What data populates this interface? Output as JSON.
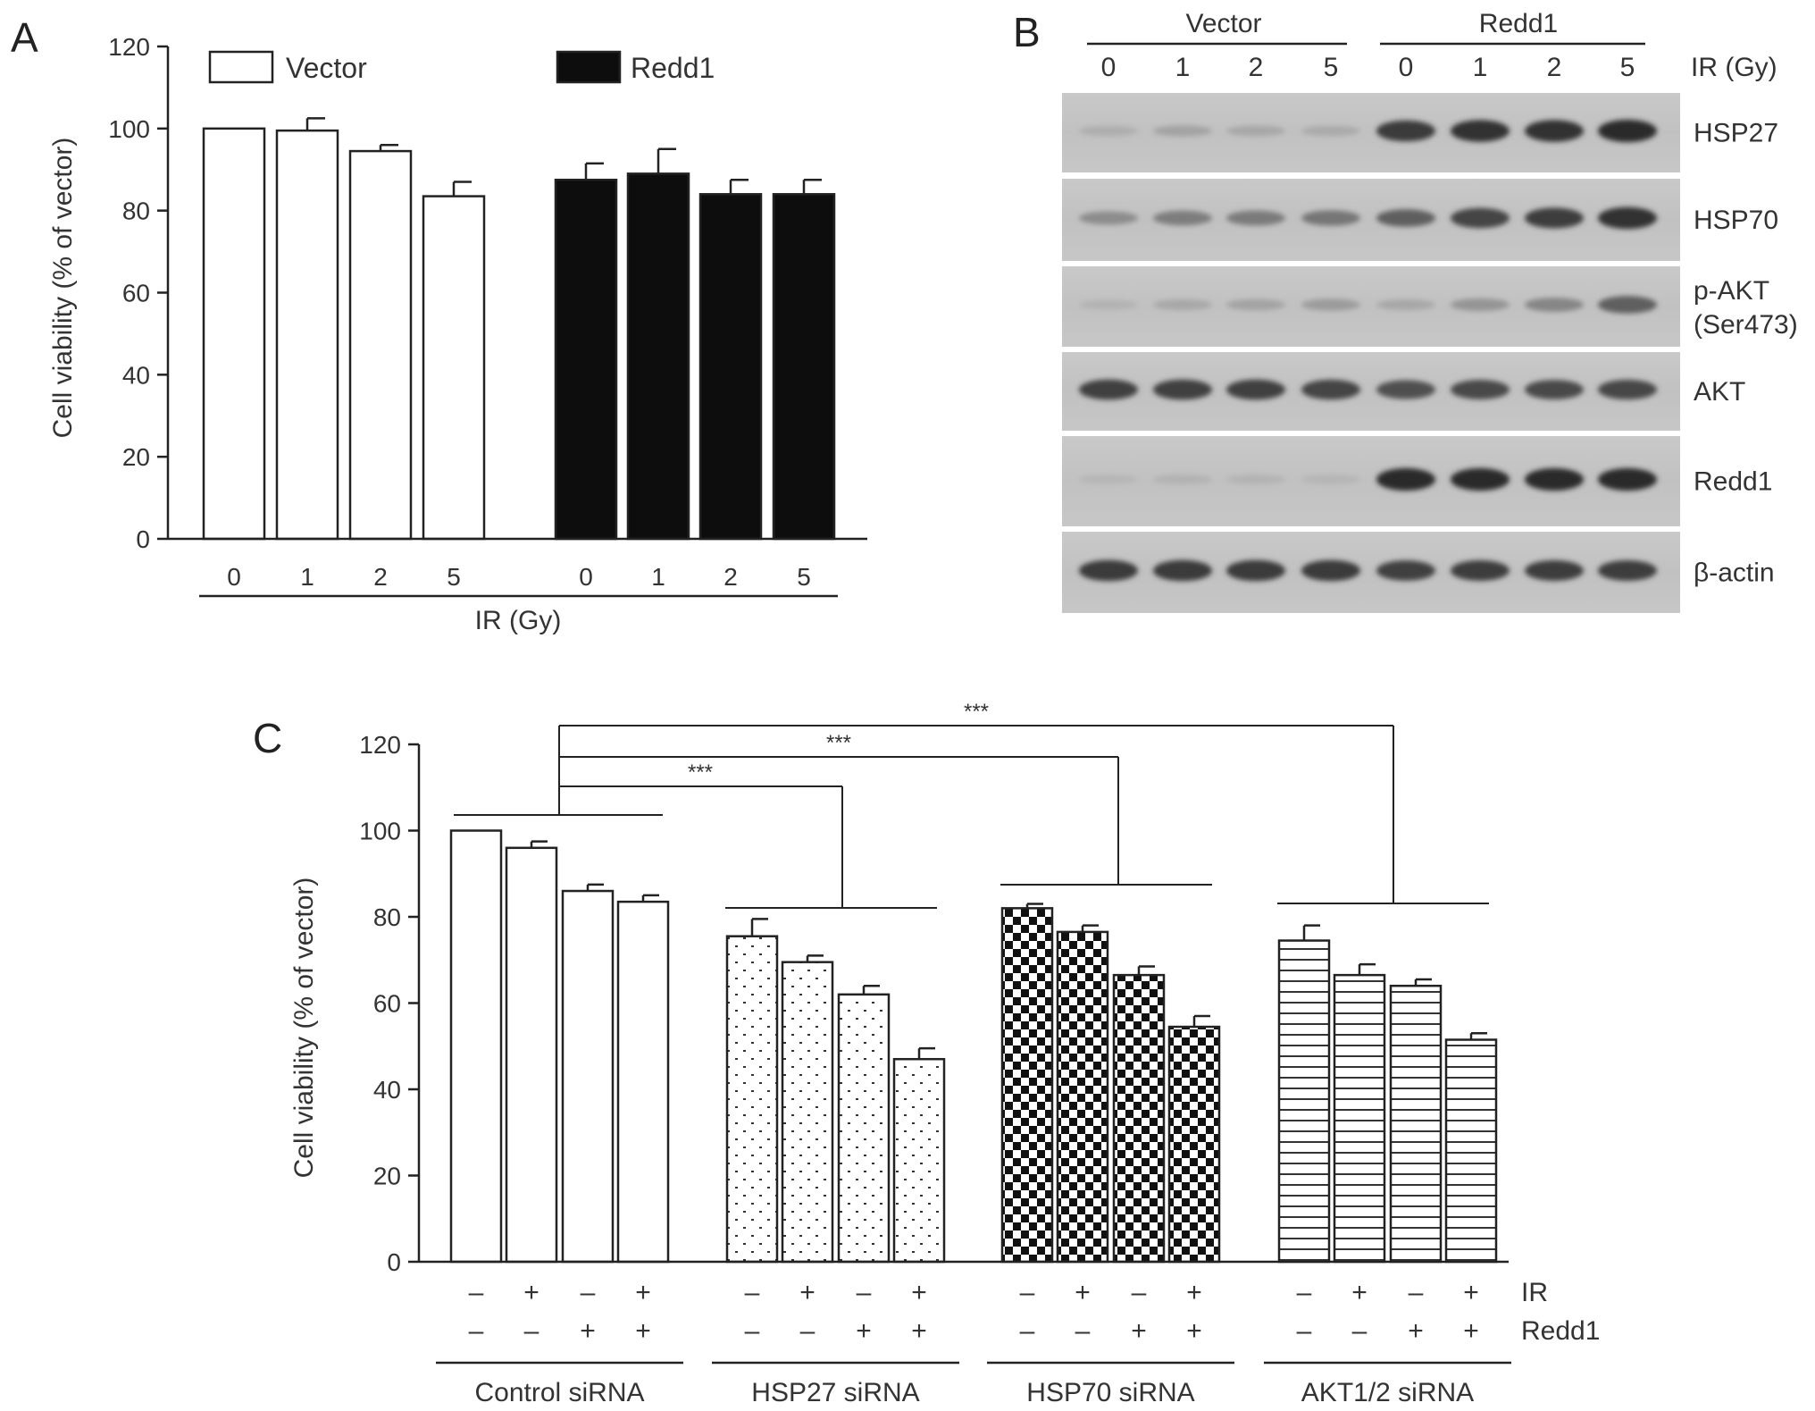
{
  "panels": {
    "a": {
      "letter": "A",
      "ylabel": "Cell viability (% of vector)",
      "xlabel": "IR (Gy)",
      "ylim": [
        0,
        120
      ],
      "yticks": [
        0,
        20,
        40,
        60,
        80,
        100,
        120
      ],
      "legend": [
        {
          "label": "Vector",
          "fill": "#ffffff"
        },
        {
          "label": "Redd1",
          "fill": "#0d0d0d"
        }
      ]
    },
    "b": {
      "letter": "B",
      "groups": [
        "Vector",
        "Redd1"
      ],
      "lanes": [
        "0",
        "1",
        "2",
        "5",
        "0",
        "1",
        "2",
        "5"
      ],
      "lane_axis_label": "IR (Gy)",
      "blots": [
        {
          "label": "HSP27",
          "intensity": [
            0.08,
            0.15,
            0.12,
            0.1,
            0.85,
            0.9,
            0.9,
            0.95
          ]
        },
        {
          "label": "HSP70",
          "intensity": [
            0.3,
            0.4,
            0.42,
            0.45,
            0.6,
            0.78,
            0.82,
            0.9
          ]
        },
        {
          "label": "p-AKT",
          "label2": "(Ser473)",
          "intensity": [
            0.05,
            0.12,
            0.15,
            0.2,
            0.12,
            0.25,
            0.35,
            0.6
          ]
        },
        {
          "label": "AKT",
          "intensity": [
            0.8,
            0.8,
            0.8,
            0.78,
            0.7,
            0.75,
            0.74,
            0.76
          ]
        },
        {
          "label": "Redd1",
          "intensity": [
            0.02,
            0.05,
            0.04,
            0.03,
            0.95,
            0.95,
            0.95,
            0.95
          ]
        },
        {
          "label": "β-actin",
          "intensity": [
            0.85,
            0.85,
            0.85,
            0.85,
            0.8,
            0.82,
            0.82,
            0.82
          ]
        }
      ]
    },
    "c": {
      "letter": "C",
      "ylabel": "Cell viability (% of vector)",
      "ylim": [
        0,
        120
      ],
      "yticks": [
        0,
        20,
        40,
        60,
        80,
        100,
        120
      ],
      "row_labels": [
        "IR",
        "Redd1"
      ],
      "significance": [
        "***",
        "***",
        "***"
      ]
    }
  },
  "chart_data": [
    {
      "type": "bar",
      "title": "",
      "xlabel": "IR (Gy)",
      "ylabel": "Cell viability (% of vector)",
      "ylim": [
        0,
        120
      ],
      "categories": [
        "0",
        "1",
        "2",
        "5"
      ],
      "series": [
        {
          "name": "Vector",
          "values": [
            100,
            99.5,
            94.5,
            83.5
          ],
          "errors": [
            0,
            3,
            1.5,
            3.5
          ],
          "color": "#ffffff"
        },
        {
          "name": "Redd1",
          "values": [
            87.5,
            89,
            84,
            84
          ],
          "errors": [
            4,
            6,
            3.5,
            3.5
          ],
          "color": "#0d0d0d"
        }
      ]
    },
    {
      "type": "bar",
      "title": "",
      "xlabel": "",
      "ylabel": "Cell viability (% of vector)",
      "ylim": [
        0,
        120
      ],
      "groups": [
        {
          "name": "Control siRNA",
          "pattern": "plain",
          "IR": [
            "–",
            "+",
            "–",
            "+"
          ],
          "Redd1": [
            "–",
            "–",
            "+",
            "+"
          ],
          "values": [
            100,
            96,
            86,
            83.5
          ],
          "errors": [
            0,
            1.5,
            1.5,
            1.5
          ]
        },
        {
          "name": "HSP27 siRNA",
          "pattern": "dots",
          "IR": [
            "–",
            "+",
            "–",
            "+"
          ],
          "Redd1": [
            "–",
            "–",
            "+",
            "+"
          ],
          "values": [
            75.5,
            69.5,
            62,
            47
          ],
          "errors": [
            4,
            1.5,
            2,
            2.5
          ]
        },
        {
          "name": "HSP70 siRNA",
          "pattern": "checker",
          "IR": [
            "–",
            "+",
            "–",
            "+"
          ],
          "Redd1": [
            "–",
            "–",
            "+",
            "+"
          ],
          "values": [
            82,
            76.5,
            66.5,
            54.5
          ],
          "errors": [
            1,
            1.5,
            2,
            2.5
          ]
        },
        {
          "name": "AKT1/2 siRNA",
          "pattern": "hlines",
          "IR": [
            "–",
            "+",
            "–",
            "+"
          ],
          "Redd1": [
            "–",
            "–",
            "+",
            "+"
          ],
          "values": [
            74.5,
            66.5,
            64,
            51.5
          ],
          "errors": [
            3.5,
            2.5,
            1.5,
            1.5
          ]
        }
      ],
      "significance": [
        {
          "label": "***",
          "from": "Control siRNA",
          "to": "HSP27 siRNA"
        },
        {
          "label": "***",
          "from": "Control siRNA",
          "to": "HSP70 siRNA"
        },
        {
          "label": "***",
          "from": "Control siRNA",
          "to": "AKT1/2 siRNA"
        }
      ]
    }
  ]
}
